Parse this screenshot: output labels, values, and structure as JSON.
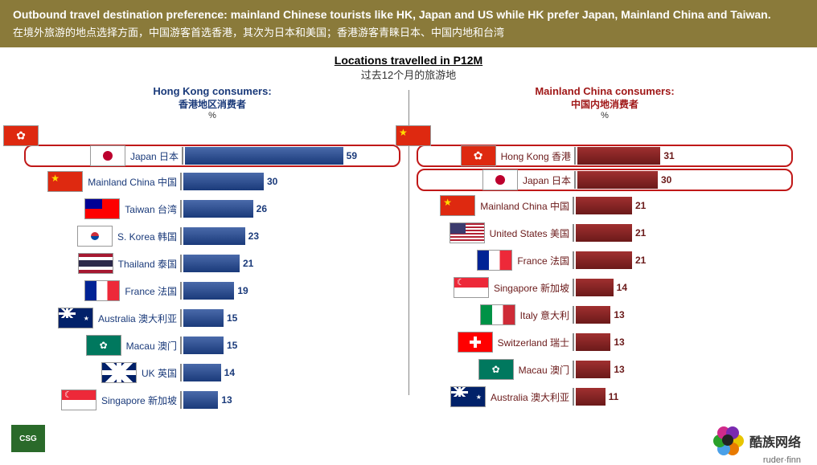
{
  "header": {
    "title_en": "Outbound travel destination preference: mainland Chinese tourists like HK, Japan and US while HK prefer Japan, Mainland China and Taiwan.",
    "title_zh": "在境外旅游的地点选择方面，中国游客首选香港，其次为日本和美国；香港游客青睐日本、中国内地和台湾",
    "bg_color": "#8a7a3a"
  },
  "subtitle": {
    "en": "Locations travelled in P12M",
    "zh": "过去12个月的旅游地"
  },
  "left_chart": {
    "title_en": "Hong Kong consumers:",
    "title_zh": "香港地区消费者",
    "pct_label": "%",
    "header_flag": "f-hk",
    "bar_color": "#1a3a7a",
    "text_color": "#1a3a7a",
    "max_scale": 60,
    "highlight_rows": [
      0
    ],
    "rows": [
      {
        "flag": "f-jp",
        "label": "Japan 日本",
        "value": 59
      },
      {
        "flag": "f-cn",
        "label": "Mainland China 中国",
        "value": 30
      },
      {
        "flag": "f-tw",
        "label": "Taiwan 台湾",
        "value": 26
      },
      {
        "flag": "f-kr",
        "label": "S. Korea 韩国",
        "value": 23
      },
      {
        "flag": "f-th",
        "label": "Thailand 泰国",
        "value": 21
      },
      {
        "flag": "f-fr",
        "label": "France 法国",
        "value": 19
      },
      {
        "flag": "f-au",
        "label": "Australia 澳大利亚",
        "value": 15
      },
      {
        "flag": "f-mo",
        "label": "Macau 澳门",
        "value": 15
      },
      {
        "flag": "f-uk",
        "label": "UK 英国",
        "value": 14
      },
      {
        "flag": "f-sg",
        "label": "Singapore 新加坡",
        "value": 13
      }
    ]
  },
  "right_chart": {
    "title_en": "Mainland China consumers:",
    "title_zh": "中国内地消费者",
    "pct_label": "%",
    "header_flag": "f-cn",
    "bar_color": "#6b1a1a",
    "text_color": "#a01818",
    "max_scale": 60,
    "highlight_rows": [
      0,
      1
    ],
    "rows": [
      {
        "flag": "f-hk",
        "label": "Hong Kong 香港",
        "value": 31
      },
      {
        "flag": "f-jp",
        "label": "Japan 日本",
        "value": 30
      },
      {
        "flag": "f-cn",
        "label": "Mainland China 中国",
        "value": 21
      },
      {
        "flag": "f-us",
        "label": "United States 美国",
        "value": 21
      },
      {
        "flag": "f-fr",
        "label": "France 法国",
        "value": 21
      },
      {
        "flag": "f-sg",
        "label": "Singapore 新加坡",
        "value": 14
      },
      {
        "flag": "f-it",
        "label": "Italy 意大利",
        "value": 13
      },
      {
        "flag": "f-ch",
        "label": "Switzerland 瑞士",
        "value": 13
      },
      {
        "flag": "f-mo",
        "label": "Macau 澳门",
        "value": 13
      },
      {
        "flag": "f-au",
        "label": "Australia 澳大利亚",
        "value": 11
      }
    ]
  },
  "logos": {
    "csg": "CSG",
    "brand_zh": "酷族网络",
    "ruder_finn": "ruder·finn",
    "petal_colors": [
      "#e8c500",
      "#e87a00",
      "#4aa0e8",
      "#2aa02a",
      "#d02a8a",
      "#7a2ab0"
    ]
  }
}
